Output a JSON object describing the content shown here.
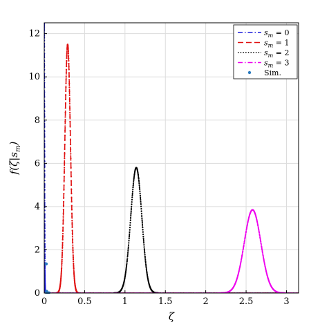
{
  "chart_data": {
    "type": "line",
    "xlabel": "ζ",
    "ylabel": "f(ζ|s_m)",
    "xlim": [
      0,
      3.15
    ],
    "ylim": [
      0,
      12.5
    ],
    "x_ticks": [
      "0",
      "0.5",
      "1",
      "1.5",
      "2",
      "2.5",
      "3"
    ],
    "y_ticks": [
      "0",
      "2",
      "4",
      "6",
      "8",
      "10",
      "12"
    ],
    "grid": true,
    "legend_position": "top-right",
    "legend": [
      "s_m = 0",
      "s_m = 1",
      "s_m = 2",
      "s_m = 3",
      "Sim."
    ],
    "series": [
      {
        "name": "s_m = 0",
        "color": "#1a1adb",
        "style": "dash-dot",
        "peak_x": 0.0,
        "peak_y": 12.5,
        "width": 0.004
      },
      {
        "name": "s_m = 1",
        "color": "#e01010",
        "style": "dashed",
        "peak_x": 0.29,
        "peak_y": 11.5,
        "width": 0.035
      },
      {
        "name": "s_m = 2",
        "color": "#000000",
        "style": "dotted",
        "peak_x": 1.14,
        "peak_y": 5.8,
        "width": 0.069
      },
      {
        "name": "s_m = 3",
        "color": "#ee00ee",
        "style": "dash-dot",
        "peak_x": 2.58,
        "peak_y": 3.85,
        "width": 0.103
      }
    ],
    "sim_points": [
      {
        "x": 0.025,
        "y": 1.35
      },
      {
        "x": 0.03,
        "y": 0.08
      }
    ],
    "sim_color": "#2b7bbf"
  }
}
